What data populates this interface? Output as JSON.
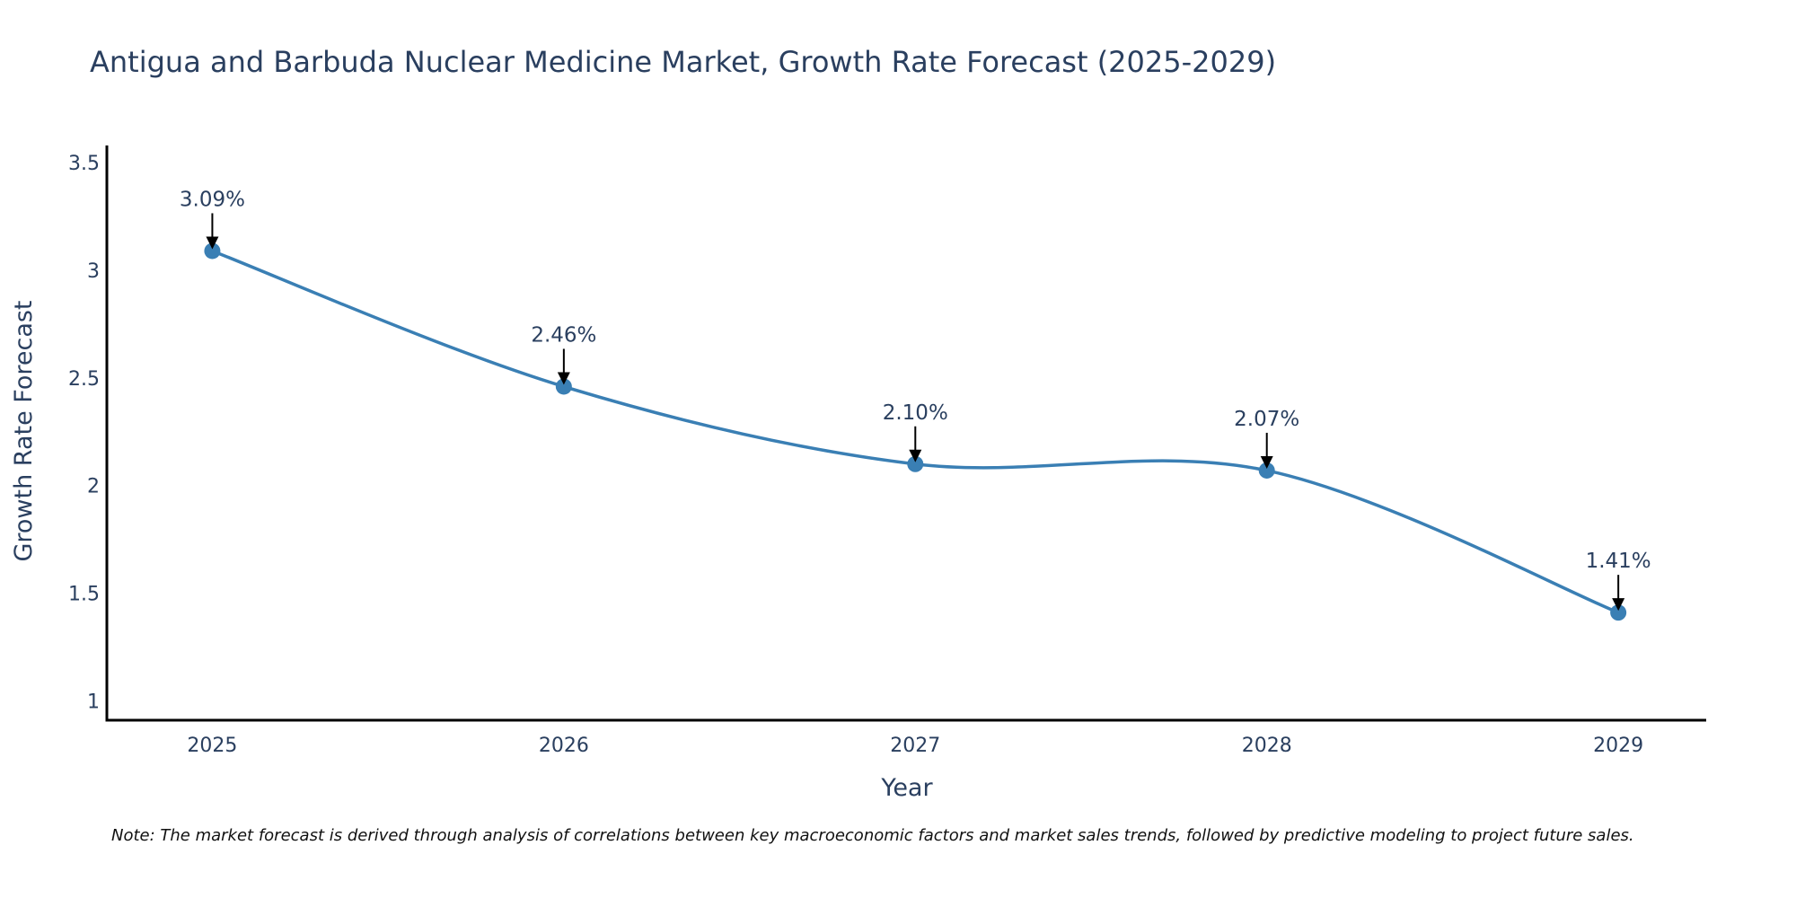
{
  "chart_data": {
    "type": "line",
    "title": "Antigua and Barbuda Nuclear Medicine Market, Growth Rate Forecast (2025-2029)",
    "xlabel": "Year",
    "ylabel": "Growth Rate Forecast",
    "categories": [
      "2025",
      "2026",
      "2027",
      "2028",
      "2029"
    ],
    "x": [
      2025,
      2026,
      2027,
      2028,
      2029
    ],
    "series": [
      {
        "name": "Growth Rate Forecast",
        "values": [
          3.09,
          2.46,
          2.1,
          2.07,
          1.41
        ],
        "color": "#3a7fb4"
      }
    ],
    "annotations": [
      "3.09%",
      "2.46%",
      "2.10%",
      "2.07%",
      "1.41%"
    ],
    "xlim": [
      2024.7,
      2029.25
    ],
    "ylim": [
      0.91,
      3.58
    ],
    "yticks": [
      1,
      1.5,
      2,
      2.5,
      3,
      3.5
    ],
    "ytick_labels": [
      "1",
      "1.5",
      "2",
      "2.5",
      "3",
      "3.5"
    ],
    "grid": false,
    "line_shape": "spline",
    "legend": "none"
  },
  "note": "Note: The market forecast is derived through analysis of correlations between key macroeconomic factors and market sales trends, followed by predictive modeling to project future sales."
}
